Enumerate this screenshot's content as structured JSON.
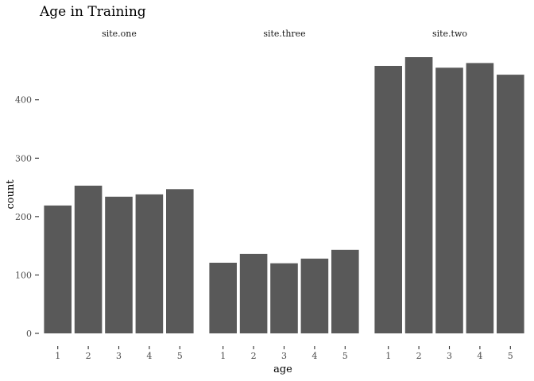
{
  "chart_data": {
    "type": "bar",
    "title": "Age in Training",
    "xlabel": "age",
    "ylabel": "count",
    "ylim": [
      0,
      500
    ],
    "yticks": [
      0,
      100,
      200,
      300,
      400
    ],
    "categories": [
      "1",
      "2",
      "3",
      "4",
      "5"
    ],
    "grid": false,
    "bar_color": "#595959",
    "facets": [
      {
        "name": "site.one",
        "values": [
          219,
          253,
          234,
          238,
          247
        ]
      },
      {
        "name": "site.three",
        "values": [
          121,
          136,
          120,
          128,
          143
        ]
      },
      {
        "name": "site.two",
        "values": [
          458,
          473,
          455,
          463,
          443
        ]
      }
    ]
  }
}
